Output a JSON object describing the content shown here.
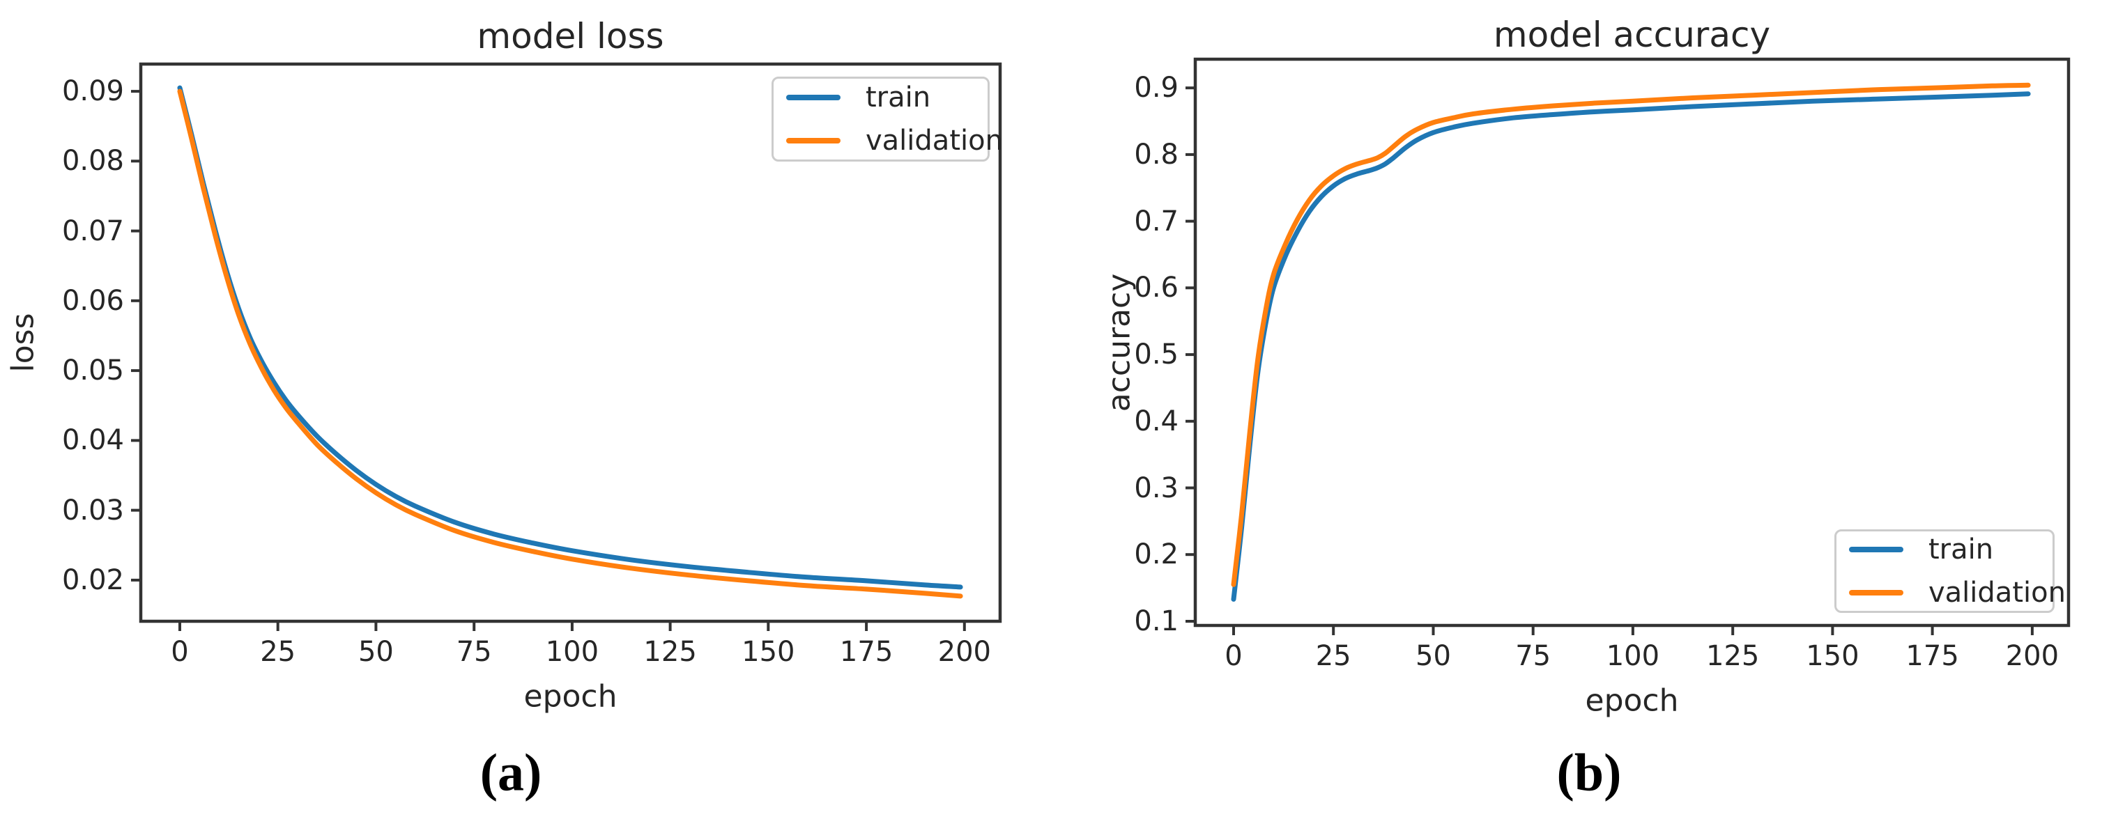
{
  "page": {
    "background": "#ffffff",
    "panel_labels": [
      "(a)",
      "(b)"
    ]
  },
  "colors": {
    "train": "#1f77b4",
    "validation": "#ff7f0e",
    "spine": "#333333",
    "text": "#262626"
  },
  "chart_data": [
    {
      "type": "line",
      "title": "model loss",
      "xlabel": "epoch",
      "ylabel": "loss",
      "xlim": [
        -9.95,
        209.1
      ],
      "ylim": [
        0.0141,
        0.0939
      ],
      "grid": false,
      "legend": {
        "location": "upper right",
        "entries": [
          "train",
          "validation"
        ]
      },
      "xticks": {
        "values": [
          0,
          25,
          50,
          75,
          100,
          125,
          150,
          175,
          200
        ],
        "labels": [
          "0",
          "25",
          "50",
          "75",
          "100",
          "125",
          "150",
          "175",
          "200"
        ]
      },
      "yticks": {
        "values": [
          0.02,
          0.03,
          0.04,
          0.05,
          0.06,
          0.07,
          0.08,
          0.09
        ],
        "labels": [
          "0.02",
          "0.03",
          "0.04",
          "0.05",
          "0.06",
          "0.07",
          "0.08",
          "0.09"
        ]
      },
      "x": [
        0,
        3,
        6,
        9,
        12,
        15,
        18,
        21,
        24,
        27,
        30,
        35,
        40,
        45,
        50,
        55,
        60,
        70,
        80,
        90,
        100,
        115,
        130,
        145,
        160,
        175,
        190,
        199
      ],
      "series": [
        {
          "name": "train",
          "color": "#1f77b4",
          "y": [
            0.0905,
            0.0838,
            0.0768,
            0.0702,
            0.0641,
            0.0589,
            0.0546,
            0.0512,
            0.0483,
            0.0458,
            0.0437,
            0.0406,
            0.038,
            0.0357,
            0.0337,
            0.032,
            0.0306,
            0.0283,
            0.0266,
            0.0253,
            0.0242,
            0.0229,
            0.0219,
            0.0211,
            0.0204,
            0.0199,
            0.0193,
            0.019
          ]
        },
        {
          "name": "validation",
          "color": "#ff7f0e",
          "y": [
            0.09,
            0.0832,
            0.0761,
            0.0694,
            0.0633,
            0.058,
            0.0537,
            0.0502,
            0.0472,
            0.0447,
            0.0426,
            0.0394,
            0.0368,
            0.0345,
            0.0325,
            0.0308,
            0.0294,
            0.0271,
            0.0254,
            0.0241,
            0.023,
            0.0217,
            0.0207,
            0.0199,
            0.0192,
            0.0187,
            0.0181,
            0.0177
          ]
        }
      ]
    },
    {
      "type": "line",
      "title": "model accuracy",
      "xlabel": "epoch",
      "ylabel": "accuracy",
      "xlim": [
        -9.6,
        209.1
      ],
      "ylim": [
        0.0937,
        0.943
      ],
      "grid": false,
      "legend": {
        "location": "lower right",
        "entries": [
          "train",
          "validation"
        ]
      },
      "xticks": {
        "values": [
          0,
          25,
          50,
          75,
          100,
          125,
          150,
          175,
          200
        ],
        "labels": [
          "0",
          "25",
          "50",
          "75",
          "100",
          "125",
          "150",
          "175",
          "200"
        ]
      },
      "yticks": {
        "values": [
          0.1,
          0.2,
          0.3,
          0.4,
          0.5,
          0.6,
          0.7,
          0.8,
          0.9
        ],
        "labels": [
          "0.1",
          "0.2",
          "0.3",
          "0.4",
          "0.5",
          "0.6",
          "0.7",
          "0.8",
          "0.9"
        ]
      },
      "x": [
        0,
        2,
        4,
        6,
        8,
        10,
        13,
        16,
        19,
        22,
        25,
        28,
        31,
        34,
        36,
        38,
        40,
        43,
        46,
        50,
        55,
        60,
        70,
        80,
        90,
        100,
        115,
        130,
        145,
        160,
        175,
        190,
        199
      ],
      "series": [
        {
          "name": "train",
          "color": "#1f77b4",
          "y": [
            0.133,
            0.24,
            0.36,
            0.47,
            0.545,
            0.6,
            0.648,
            0.685,
            0.715,
            0.737,
            0.753,
            0.764,
            0.771,
            0.776,
            0.78,
            0.786,
            0.795,
            0.81,
            0.822,
            0.833,
            0.841,
            0.847,
            0.855,
            0.86,
            0.864,
            0.867,
            0.872,
            0.876,
            0.88,
            0.883,
            0.886,
            0.889,
            0.891
          ]
        },
        {
          "name": "validation",
          "color": "#ff7f0e",
          "y": [
            0.155,
            0.26,
            0.38,
            0.49,
            0.565,
            0.62,
            0.666,
            0.703,
            0.732,
            0.753,
            0.768,
            0.779,
            0.786,
            0.791,
            0.795,
            0.802,
            0.812,
            0.827,
            0.838,
            0.848,
            0.855,
            0.861,
            0.868,
            0.873,
            0.877,
            0.88,
            0.885,
            0.889,
            0.893,
            0.897,
            0.9,
            0.903,
            0.904
          ]
        }
      ]
    }
  ]
}
